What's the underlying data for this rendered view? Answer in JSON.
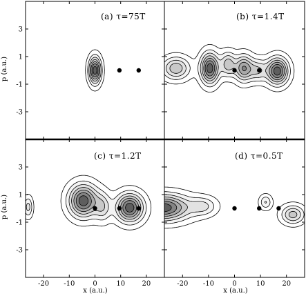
{
  "chart_data": [
    {
      "type": "heatmap",
      "panel": "a",
      "title": "(a) τ=75T",
      "xlabel": "",
      "ylabel": "p (a.u.)",
      "xlim": [
        -27,
        27
      ],
      "ylim": [
        -5,
        5
      ],
      "xticks": [
        -20,
        -10,
        0,
        10,
        20
      ],
      "yticks": [
        -3,
        -1,
        1,
        3
      ],
      "show_xtick_labels": false,
      "show_ytick_labels": true,
      "blobs": [
        {
          "x": 0,
          "p": 0.0,
          "sx": 1.6,
          "sp": 0.65,
          "amp": 1.0
        }
      ],
      "nuclei": [
        {
          "x": 9.5,
          "p": 0.0
        },
        {
          "x": 17.0,
          "p": 0.0
        }
      ]
    },
    {
      "type": "heatmap",
      "panel": "b",
      "title": "(b) τ=1.4T",
      "xlabel": "",
      "ylabel": "",
      "xlim": [
        -27,
        27
      ],
      "ylim": [
        -5,
        5
      ],
      "xticks": [
        -20,
        -10,
        0,
        10,
        20
      ],
      "yticks": [
        -3,
        -1,
        1,
        3
      ],
      "show_xtick_labels": false,
      "show_ytick_labels": false,
      "blobs": [
        {
          "x": -9.5,
          "p": 0.15,
          "sx": 2.4,
          "sp": 0.75,
          "amp": 1.0
        },
        {
          "x": -2.5,
          "p": 0.45,
          "sx": 2.0,
          "sp": 0.6,
          "amp": 0.55
        },
        {
          "x": 3.5,
          "p": 0.15,
          "sx": 2.4,
          "sp": 0.65,
          "amp": 0.75
        },
        {
          "x": 9.0,
          "p": 0.0,
          "sx": 2.4,
          "sp": 0.55,
          "amp": 0.45
        },
        {
          "x": 16.5,
          "p": -0.05,
          "sx": 2.8,
          "sp": 0.65,
          "amp": 1.0
        },
        {
          "x": -22.5,
          "p": 0.15,
          "sx": 3.6,
          "sp": 0.55,
          "amp": 0.6
        }
      ],
      "nuclei": [
        {
          "x": 0.0,
          "p": 0.0
        },
        {
          "x": 9.5,
          "p": 0.0
        }
      ]
    },
    {
      "type": "heatmap",
      "panel": "c",
      "title": "(c) τ=1.2T",
      "xlabel": "x (a.u.)",
      "ylabel": "p (a.u.)",
      "xlim": [
        -27,
        27
      ],
      "ylim": [
        -5,
        5
      ],
      "xticks": [
        -20,
        -10,
        0,
        10,
        20
      ],
      "yticks": [
        -3,
        -1,
        1,
        3
      ],
      "show_xtick_labels": true,
      "show_ytick_labels": true,
      "blobs": [
        {
          "x": -4.5,
          "p": 0.55,
          "sx": 3.8,
          "sp": 0.8,
          "amp": 1.0
        },
        {
          "x": 3.0,
          "p": 0.1,
          "sx": 2.2,
          "sp": 0.7,
          "amp": 0.4
        },
        {
          "x": 13.5,
          "p": 0.05,
          "sx": 3.6,
          "sp": 0.7,
          "amp": 1.0
        },
        {
          "x": -26.0,
          "p": 0.1,
          "sx": 1.2,
          "sp": 0.5,
          "amp": 0.4
        }
      ],
      "nuclei": [
        {
          "x": 0.0,
          "p": 0.0
        },
        {
          "x": 9.5,
          "p": 0.0
        },
        {
          "x": 17.0,
          "p": 0.0
        }
      ]
    },
    {
      "type": "heatmap",
      "panel": "d",
      "title": "(d) τ=0.5T",
      "xlabel": "x (a.u.)",
      "ylabel": "",
      "xlim": [
        -27,
        27
      ],
      "ylim": [
        -5,
        5
      ],
      "xticks": [
        -20,
        -10,
        0,
        10,
        20
      ],
      "yticks": [
        -3,
        -1,
        1,
        3
      ],
      "show_xtick_labels": true,
      "show_ytick_labels": false,
      "blobs": [
        {
          "x": -27.5,
          "p": 0.05,
          "sx": 7.0,
          "sp": 0.65,
          "amp": 1.0
        },
        {
          "x": -12.0,
          "p": 0.15,
          "sx": 3.5,
          "sp": 0.45,
          "amp": 0.35
        },
        {
          "x": 12.0,
          "p": 0.45,
          "sx": 1.6,
          "sp": 0.35,
          "amp": 0.35
        },
        {
          "x": 22.5,
          "p": -0.45,
          "sx": 3.0,
          "sp": 0.45,
          "amp": 0.55
        }
      ],
      "nuclei": [
        {
          "x": 0.0,
          "p": 0.0
        },
        {
          "x": 9.5,
          "p": 0.0
        },
        {
          "x": 17.0,
          "p": 0.0
        }
      ]
    }
  ]
}
